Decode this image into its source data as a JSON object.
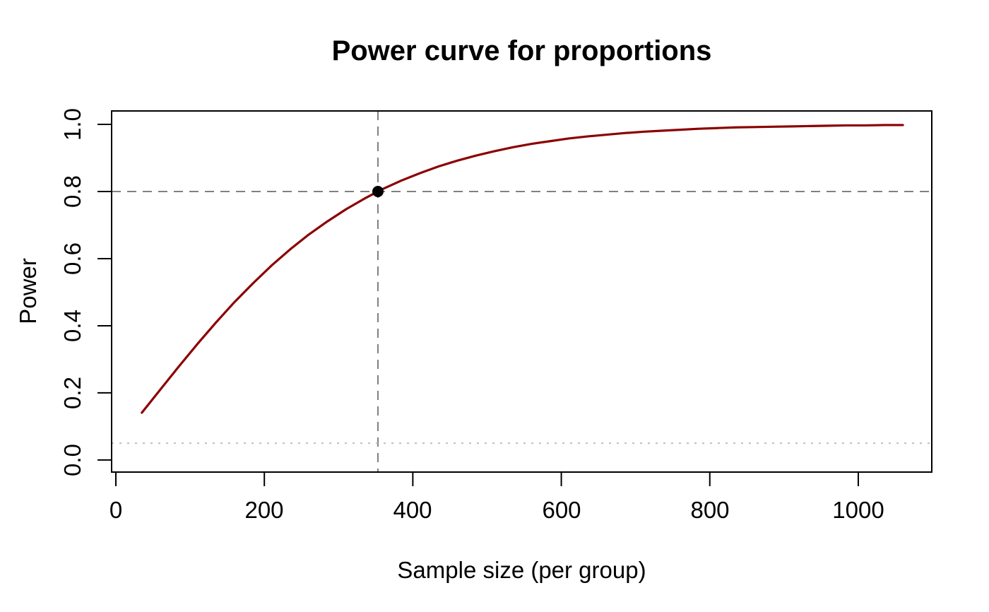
{
  "chart_data": {
    "type": "line",
    "title": "Power curve for proportions",
    "xlabel": "Sample size (per group)",
    "ylabel": "Power",
    "x_ticks": {
      "values": [
        0,
        200,
        400,
        600,
        800,
        1000
      ],
      "labels": [
        "0",
        "200",
        "400",
        "600",
        "800",
        "1000"
      ]
    },
    "y_ticks": {
      "values": [
        0,
        0.2,
        0.4,
        0.6,
        0.8,
        1.0
      ],
      "labels": [
        "0.0",
        "0.2",
        "0.4",
        "0.6",
        "0.8",
        "1.0"
      ]
    },
    "xlim": [
      -5.7,
      1099
    ],
    "ylim": [
      -0.036,
      1.04
    ],
    "grid": false,
    "legend": false,
    "axis_color": "#000000",
    "series": [
      {
        "name": "power-curve",
        "color": "#8B0000",
        "line_width": 3.2,
        "x": [
          35,
          60,
          85,
          110,
          135,
          160,
          185,
          210,
          235,
          260,
          285,
          310,
          335,
          353,
          360,
          385,
          410,
          435,
          460,
          485,
          510,
          535,
          560,
          585,
          610,
          635,
          660,
          685,
          710,
          735,
          760,
          785,
          810,
          835,
          860,
          885,
          910,
          935,
          960,
          985,
          1010,
          1035,
          1060
        ],
        "y": [
          0.141,
          0.21,
          0.279,
          0.346,
          0.41,
          0.471,
          0.527,
          0.58,
          0.628,
          0.672,
          0.711,
          0.747,
          0.779,
          0.8,
          0.808,
          0.833,
          0.855,
          0.875,
          0.892,
          0.907,
          0.92,
          0.932,
          0.942,
          0.95,
          0.958,
          0.964,
          0.969,
          0.974,
          0.978,
          0.981,
          0.984,
          0.987,
          0.989,
          0.991,
          0.992,
          0.993,
          0.994,
          0.995,
          0.996,
          0.997,
          0.997,
          0.998,
          0.998
        ]
      }
    ],
    "reference_lines": [
      {
        "name": "target-power",
        "orientation": "horizontal",
        "value": 0.8,
        "style": "dashed",
        "color": "#808080",
        "width": 2
      },
      {
        "name": "required-sample-size",
        "orientation": "vertical",
        "value": 353,
        "style": "dashed",
        "color": "#808080",
        "width": 2
      },
      {
        "name": "alpha-level",
        "orientation": "horizontal",
        "value": 0.05,
        "style": "dotted",
        "color": "#BEBEBE",
        "width": 2
      }
    ],
    "highlight_point": {
      "x": 353,
      "y": 0.8,
      "color": "#000000",
      "radius": 8
    }
  }
}
